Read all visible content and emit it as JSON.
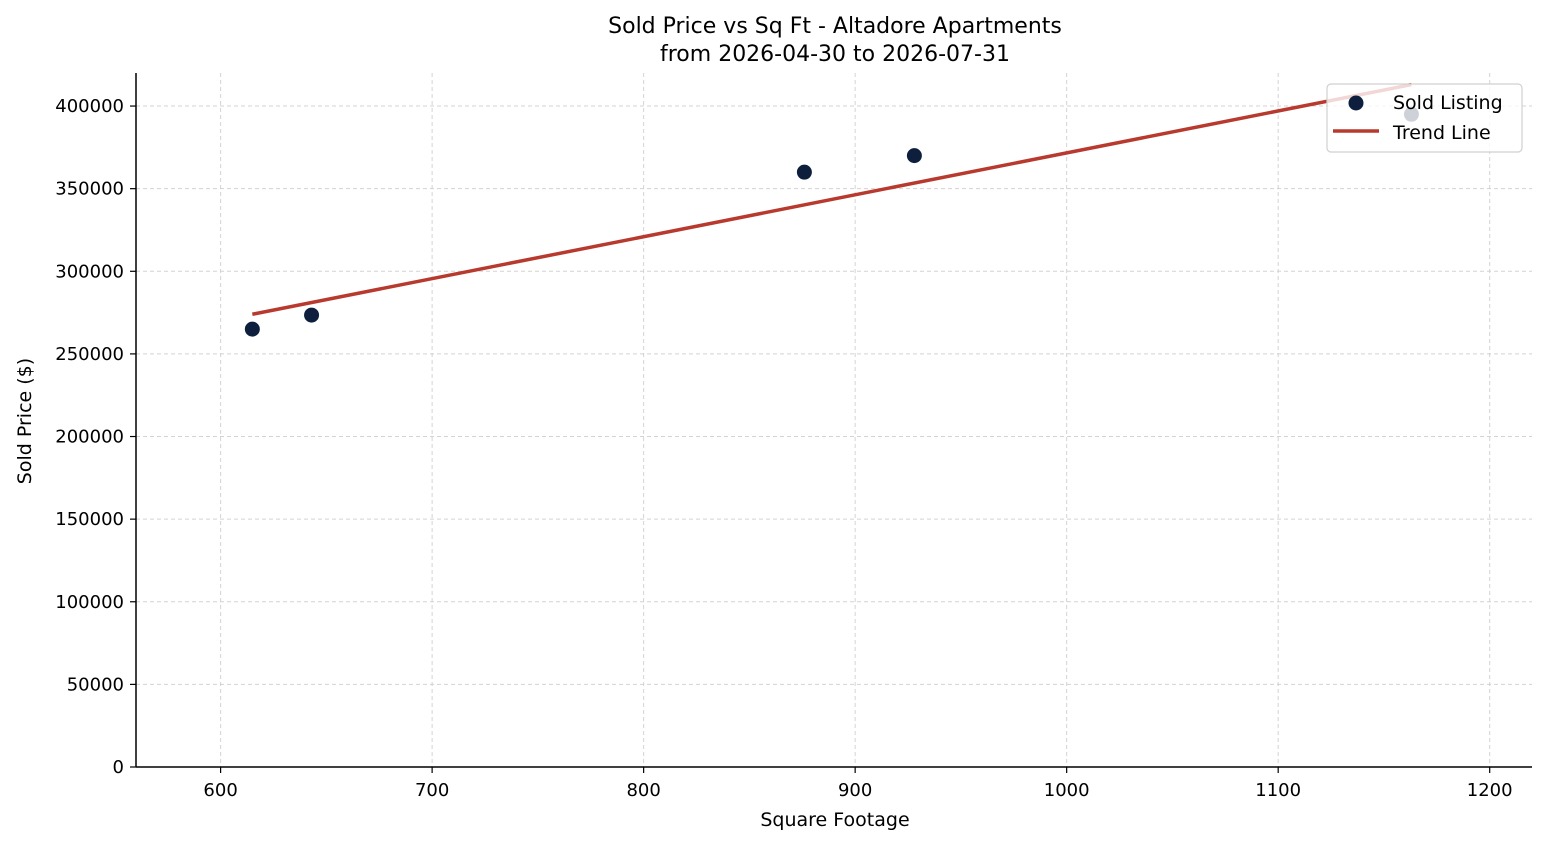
{
  "chart_data": {
    "type": "scatter",
    "title": "Sold Price vs Sq Ft - Altadore Apartments",
    "subtitle": "from 2026-04-30 to 2026-07-31",
    "xlabel": "Square Footage",
    "ylabel": "Sold Price ($)",
    "xlim": [
      560,
      1220
    ],
    "ylim": [
      0,
      420000
    ],
    "xticks": [
      600,
      700,
      800,
      900,
      1000,
      1100,
      1200
    ],
    "yticks": [
      0,
      50000,
      100000,
      150000,
      200000,
      250000,
      300000,
      350000,
      400000
    ],
    "grid": true,
    "legend_position": "top-right",
    "series": [
      {
        "name": "Sold Listing",
        "kind": "scatter",
        "color": "#0d1f3c",
        "points": [
          {
            "x": 615,
            "y": 265000
          },
          {
            "x": 643,
            "y": 273500
          },
          {
            "x": 876,
            "y": 360000
          },
          {
            "x": 928,
            "y": 370000
          },
          {
            "x": 1163,
            "y": 395000
          }
        ]
      },
      {
        "name": "Trend Line",
        "kind": "line",
        "color": "#b83a2e",
        "points": [
          {
            "x": 615,
            "y": 274000
          },
          {
            "x": 1163,
            "y": 413000
          }
        ]
      }
    ]
  }
}
